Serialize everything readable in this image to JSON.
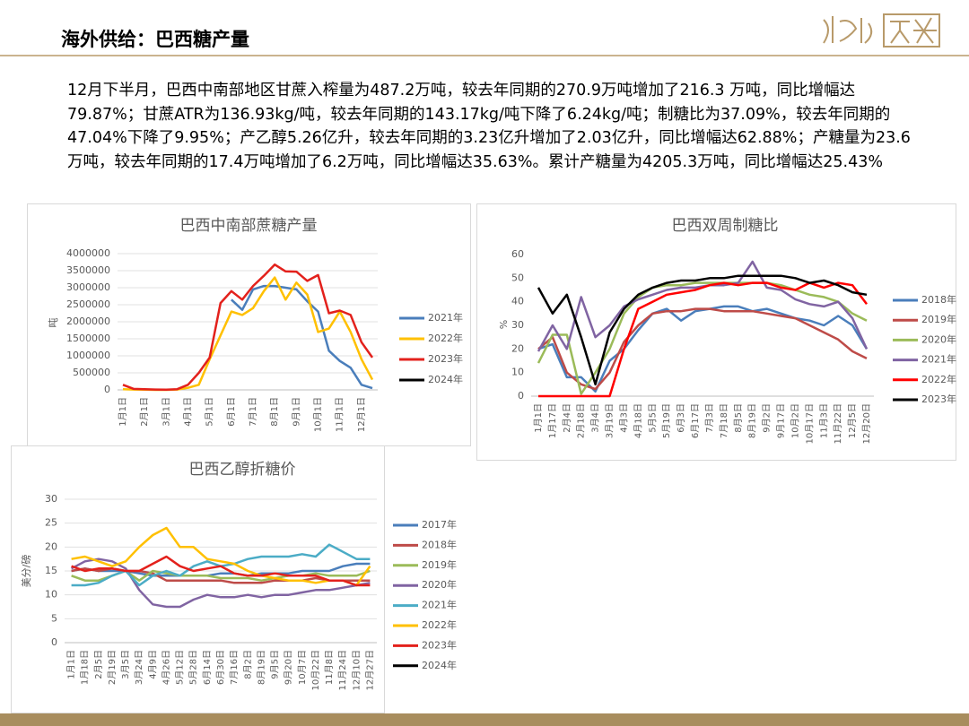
{
  "header": {
    "title": "海外供给：巴西糖产量"
  },
  "summary": "12月下半月，巴西中南部地区甘蔗入榨量为487.2万吨，较去年同期的270.9万吨增加了216.3 万吨，同比增幅达79.87%；甘蔗ATR为136.93kg/吨，较去年同期的143.17kg/吨下降了6.24kg/吨；制糖比为37.09%，较去年同期的47.04%下降了9.95%；产乙醇5.26亿升，较去年同期的3.23亿升增加了2.03亿升，同比增幅达62.88%；产糖量为23.6万吨，较去年同期的17.4万吨增加了6.2万吨，同比增幅达35.63%。累计产糖量为4205.3万吨，同比增幅达25.43%",
  "chart_data": [
    {
      "type": "line",
      "title": "巴西中南部蔗糖产量",
      "y_label": "吨",
      "categories": [
        "1月1日",
        null,
        "2月1日",
        null,
        "3月1日",
        null,
        "4月1日",
        null,
        "5月1日",
        null,
        "6月1日",
        null,
        "7月1日",
        null,
        "8月1日",
        null,
        "9月1日",
        null,
        "10月1日",
        null,
        "11月1日",
        null,
        "12月1日",
        null
      ],
      "ylim": [
        0,
        4000000
      ],
      "yticks": [
        0,
        500000,
        1000000,
        1500000,
        2000000,
        2500000,
        3000000,
        3500000,
        4000000
      ],
      "grid": true,
      "series": [
        {
          "name": "2021年",
          "color": "#4a7ebb",
          "values": [
            null,
            null,
            null,
            null,
            null,
            null,
            null,
            null,
            null,
            null,
            2650000,
            2350000,
            2950000,
            3050000,
            3050000,
            3000000,
            2950000,
            2600000,
            2300000,
            1150000,
            850000,
            650000,
            150000,
            50000
          ]
        },
        {
          "name": "2022年",
          "color": "#ffc000",
          "values": [
            20000,
            10000,
            5000,
            0,
            0,
            10000,
            60000,
            150000,
            900000,
            1600000,
            2300000,
            2200000,
            2400000,
            2900000,
            3300000,
            2650000,
            3150000,
            2800000,
            1700000,
            1800000,
            2300000,
            1700000,
            900000,
            300000
          ]
        },
        {
          "name": "2023年",
          "color": "#e3211c",
          "values": [
            150000,
            30000,
            20000,
            10000,
            5000,
            20000,
            150000,
            500000,
            950000,
            2550000,
            2900000,
            2650000,
            3050000,
            3350000,
            3680000,
            3480000,
            3470000,
            3200000,
            3370000,
            2250000,
            2330000,
            2200000,
            1400000,
            950000
          ]
        },
        {
          "name": "2024年",
          "color": "#000000",
          "values": [
            null,
            null,
            null,
            null,
            null,
            null,
            null,
            null,
            null,
            null,
            null,
            null,
            null,
            null,
            null,
            null,
            null,
            null,
            null,
            null,
            null,
            null,
            null,
            null
          ]
        }
      ]
    },
    {
      "type": "line",
      "title": "巴西双周制糖比",
      "y_label": "%",
      "categories": [
        "1月1日",
        "1月17日",
        "2月4日",
        "2月18日",
        "3月4日",
        "3月19日",
        "4月3日",
        "4月18日",
        "5月5日",
        "5月19日",
        "6月3日",
        "6月17日",
        "7月3日",
        "7月18日",
        "8月5日",
        "8月19日",
        "9月2日",
        "9月17日",
        "10月2日",
        "10月17日",
        "11月3日",
        "11月22日",
        "12月5日",
        "12月20日"
      ],
      "ylim": [
        0,
        60
      ],
      "yticks": [
        0,
        10,
        20,
        30,
        40,
        50,
        60
      ],
      "grid": false,
      "series": [
        {
          "name": "2018年",
          "color": "#4a7ebb",
          "values": [
            20,
            22,
            8,
            8,
            2,
            15,
            20,
            28,
            35,
            37,
            32,
            36,
            37,
            38,
            38,
            36,
            37,
            35,
            33,
            32,
            30,
            34,
            30,
            20
          ]
        },
        {
          "name": "2019年",
          "color": "#be4b48",
          "values": [
            20,
            25,
            10,
            5,
            3,
            10,
            23,
            30,
            35,
            36,
            36,
            37,
            37,
            36,
            36,
            36,
            35,
            34,
            33,
            30,
            27,
            24,
            19,
            16
          ]
        },
        {
          "name": "2020年",
          "color": "#9bbb59",
          "values": [
            14,
            26,
            26,
            1,
            10,
            20,
            35,
            42,
            46,
            47,
            47,
            48,
            48,
            48,
            48,
            48,
            48,
            47,
            45,
            43,
            42,
            40,
            35,
            32
          ]
        },
        {
          "name": "2021年",
          "color": "#8064a2",
          "values": [
            19,
            30,
            20,
            42,
            25,
            30,
            38,
            41,
            43,
            45,
            46,
            46,
            47,
            47,
            48,
            57,
            46,
            45,
            41,
            39,
            38,
            40,
            33,
            20
          ]
        },
        {
          "name": "2022年",
          "color": "#ff0000",
          "values": [
            0,
            0,
            0,
            0,
            0,
            0,
            20,
            37,
            40,
            43,
            44,
            45,
            47,
            48,
            47,
            48,
            48,
            46,
            45,
            48,
            46,
            48,
            47,
            39
          ]
        },
        {
          "name": "2023年",
          "color": "#000000",
          "values": [
            46,
            35,
            43,
            25,
            5,
            27,
            37,
            43,
            46,
            48,
            49,
            49,
            50,
            50,
            51,
            51,
            51,
            51,
            50,
            48,
            49,
            47,
            44,
            43
          ]
        }
      ]
    },
    {
      "type": "line",
      "title": "巴西乙醇折糖价",
      "y_label": "美分/磅",
      "categories": [
        "1月1日",
        "1月18日",
        "2月5日",
        "2月19日",
        "3月5日",
        "3月24日",
        "4月9日",
        "4月26日",
        "5月12日",
        "5月28日",
        "6月14日",
        "6月30日",
        "7月16日",
        "8月2日",
        "8月19日",
        "9月5日",
        "9月20日",
        "10月7日",
        "10月22日",
        "11月8日",
        "11月24日",
        "12月10日",
        "12月27日"
      ],
      "ylim": [
        0,
        30
      ],
      "yticks": [
        0,
        5,
        10,
        15,
        20,
        25,
        30
      ],
      "grid": true,
      "series": [
        {
          "name": "2017年",
          "color": "#4a7ebb",
          "values": [
            15,
            15.5,
            15,
            15,
            15,
            14.5,
            14,
            14,
            14,
            14,
            14,
            14.5,
            14.5,
            14,
            14.5,
            14.5,
            14.5,
            15,
            15,
            15,
            16,
            16.5,
            16.5
          ]
        },
        {
          "name": "2018年",
          "color": "#be4b48",
          "values": [
            15,
            15.5,
            15,
            15.5,
            15,
            15,
            14.5,
            13,
            13,
            13,
            13,
            13,
            12.5,
            12.5,
            12.5,
            13,
            13,
            13,
            13.5,
            13,
            13,
            13,
            13
          ]
        },
        {
          "name": "2019年",
          "color": "#9bbb59",
          "values": [
            14,
            13,
            13,
            14,
            15,
            13,
            15,
            14.5,
            14,
            14,
            14,
            13.5,
            13.5,
            13.5,
            13,
            13.5,
            14,
            14,
            14.5,
            14,
            14,
            14,
            15
          ]
        },
        {
          "name": "2020年",
          "color": "#8064a2",
          "values": [
            15.5,
            17,
            17.5,
            17,
            15.5,
            11,
            8,
            7.5,
            7.5,
            9,
            10,
            9.5,
            9.5,
            10,
            9.5,
            10,
            10,
            10.5,
            11,
            11,
            11.5,
            12,
            12.5
          ]
        },
        {
          "name": "2021年",
          "color": "#4bacc6",
          "values": [
            12,
            12,
            12.5,
            14,
            15,
            12,
            14,
            15,
            14,
            16,
            17,
            16,
            16.5,
            17.5,
            18,
            18,
            18,
            18.5,
            18,
            20.5,
            19,
            17.5,
            17.5
          ]
        },
        {
          "name": "2022年",
          "color": "#ffc000",
          "values": [
            17.5,
            18,
            17,
            16,
            17,
            20,
            22.5,
            24,
            20,
            20,
            17.5,
            17,
            16.5,
            15,
            14,
            13.5,
            13,
            13,
            12.5,
            13,
            13,
            12,
            16
          ]
        },
        {
          "name": "2023年",
          "color": "#e3211c",
          "values": [
            16,
            15,
            15.5,
            15.5,
            15,
            15,
            16.5,
            18,
            16,
            15,
            15.5,
            16,
            14.5,
            14,
            14,
            14.5,
            14,
            14,
            14,
            13,
            13,
            12,
            12
          ]
        },
        {
          "name": "2024年",
          "color": "#000000",
          "values": [
            null,
            null,
            null,
            null,
            null,
            null,
            null,
            null,
            null,
            null,
            null,
            null,
            null,
            null,
            null,
            null,
            null,
            null,
            null,
            null,
            null,
            null,
            null
          ]
        }
      ]
    }
  ]
}
